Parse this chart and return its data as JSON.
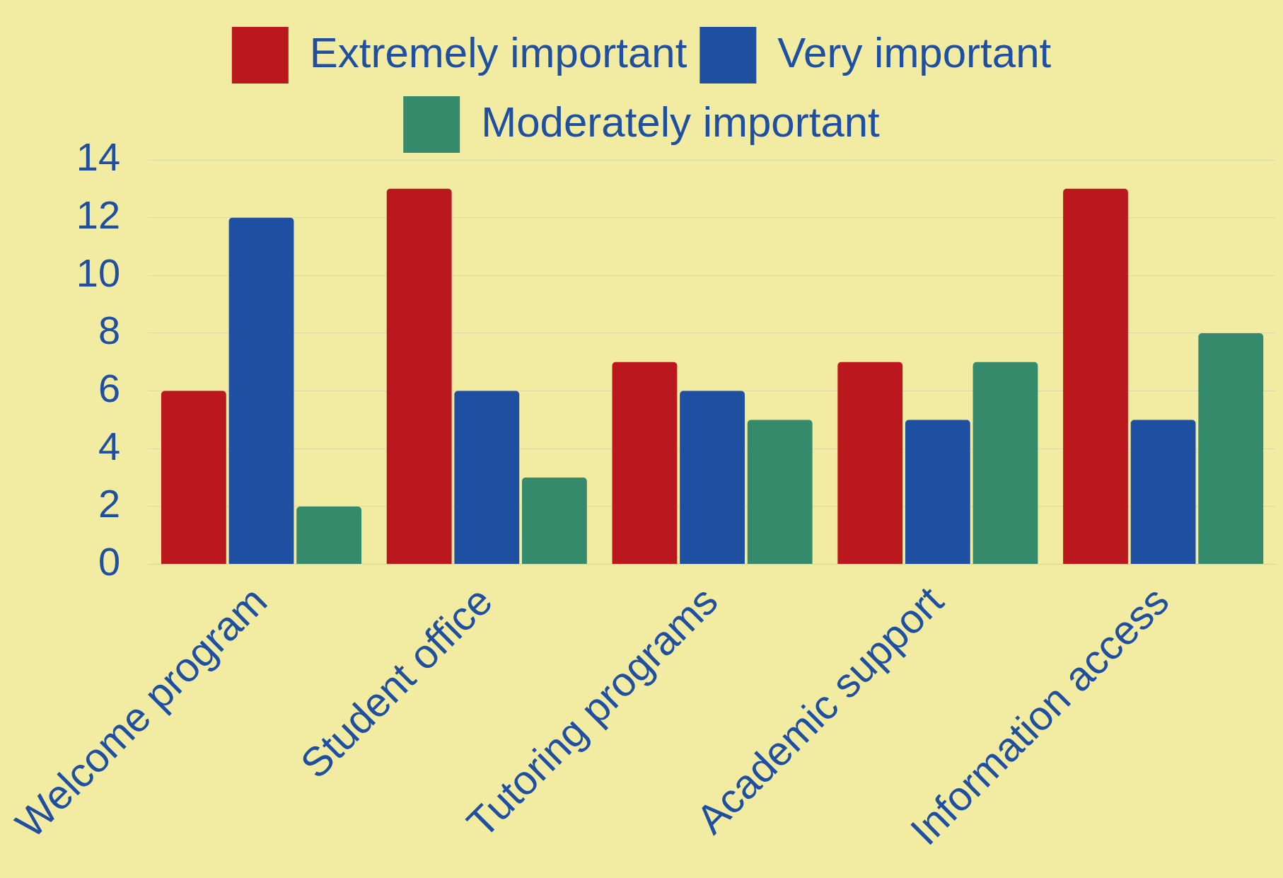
{
  "chart_data": {
    "type": "bar",
    "categories": [
      "Welcome program",
      "Student office",
      "Tutoring programs",
      "Academic support",
      "Information access"
    ],
    "series": [
      {
        "name": "Extremely important",
        "color": "#bb181d",
        "values": [
          6,
          13,
          7,
          7,
          13
        ]
      },
      {
        "name": "Very important",
        "color": "#1f4fa0",
        "values": [
          12,
          6,
          6,
          5,
          5
        ]
      },
      {
        "name": "Moderately important",
        "color": "#348a6a",
        "values": [
          2,
          3,
          5,
          7,
          8
        ]
      }
    ],
    "ylim": [
      0,
      14
    ],
    "yticks": [
      0,
      2,
      4,
      6,
      8,
      10,
      12,
      14
    ],
    "grid": "y",
    "legend": "top"
  }
}
